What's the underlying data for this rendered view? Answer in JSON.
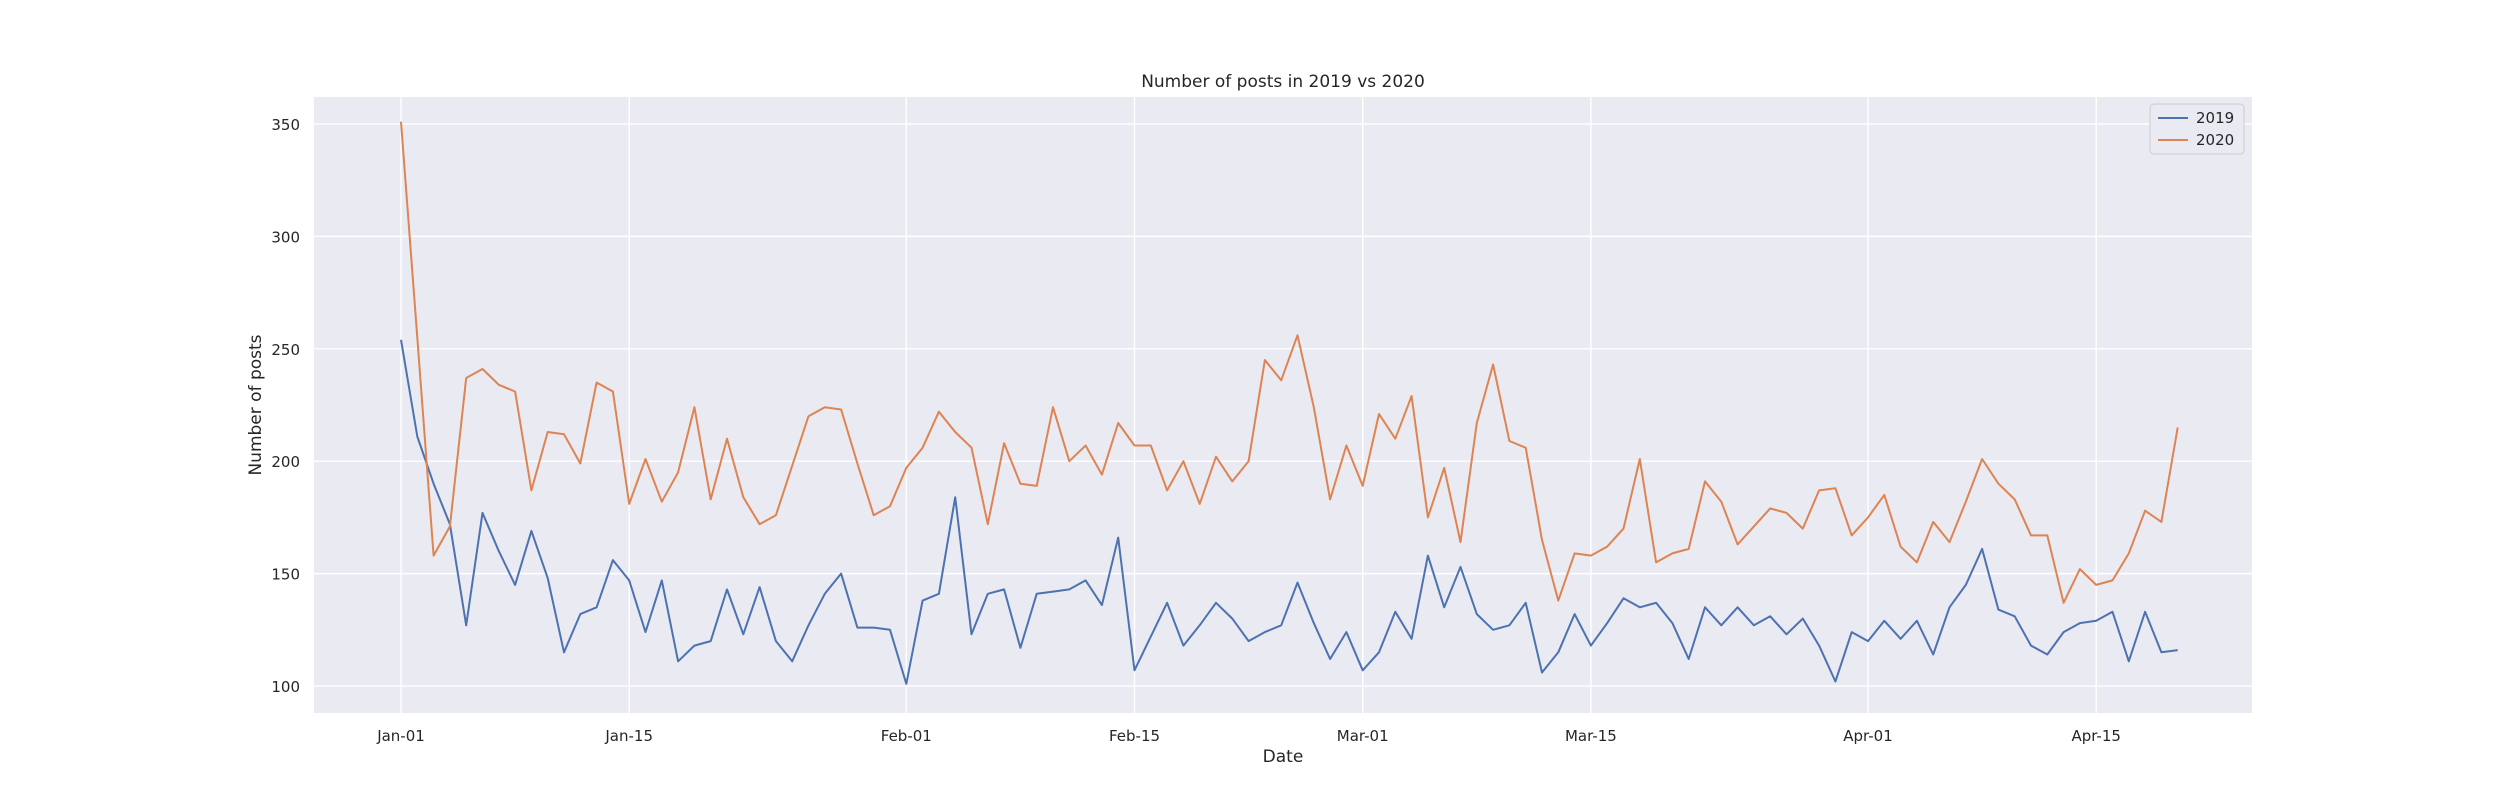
{
  "chart_data": {
    "type": "line",
    "title": "Number of posts in 2019 vs 2020",
    "xlabel": "Date",
    "ylabel": "Number of posts",
    "x_start": "Jan-01",
    "x_tick_labels": [
      "Jan-01",
      "Jan-15",
      "Feb-01",
      "Feb-15",
      "Mar-01",
      "Mar-15",
      "Apr-01",
      "Apr-15"
    ],
    "x_tick_days": [
      0,
      14,
      31,
      45,
      59,
      73,
      90,
      104
    ],
    "ylim": [
      88,
      362
    ],
    "y_ticks": [
      100,
      150,
      200,
      250,
      300,
      350
    ],
    "grid": true,
    "legend_position": "top-right",
    "background_color": "#eaeaf2",
    "series": [
      {
        "name": "2019",
        "color": "#4c72b0",
        "values": [
          254,
          211,
          190,
          172,
          127,
          177,
          160,
          145,
          169,
          148,
          115,
          132,
          135,
          156,
          147,
          124,
          147,
          111,
          118,
          120,
          143,
          123,
          144,
          120,
          111,
          127,
          141,
          150,
          126,
          126,
          125,
          101,
          138,
          141,
          184,
          123,
          141,
          143,
          117,
          141,
          142,
          143,
          147,
          136,
          166,
          107,
          122,
          137,
          118,
          127,
          137,
          130,
          120,
          124,
          127,
          146,
          128,
          112,
          124,
          107,
          115,
          133,
          121,
          158,
          135,
          153,
          132,
          125,
          127,
          137,
          106,
          115,
          132,
          118,
          128,
          139,
          135,
          137,
          128,
          112,
          135,
          127,
          135,
          127,
          131,
          123,
          130,
          118,
          102,
          124,
          120,
          129,
          121,
          129,
          114,
          135,
          145,
          161,
          134,
          131,
          118,
          114,
          124,
          128,
          129,
          133,
          111,
          133,
          115,
          116
        ],
        "x_days": [
          0,
          1,
          2,
          3,
          4,
          5,
          6,
          7,
          8,
          9,
          10,
          11,
          12,
          13,
          14,
          15,
          16,
          17,
          18,
          19,
          20,
          21,
          22,
          23,
          24,
          25,
          26,
          27,
          28,
          29,
          30,
          31,
          32,
          33,
          34,
          35,
          36,
          37,
          38,
          39,
          40,
          41,
          42,
          43,
          44,
          45,
          46,
          47,
          48,
          49,
          50,
          51,
          52,
          53,
          54,
          55,
          56,
          57,
          58,
          59,
          60,
          61,
          62,
          63,
          64,
          65,
          66,
          67,
          68,
          69,
          70,
          71,
          72,
          73,
          74,
          75,
          76,
          77,
          78,
          79,
          80,
          81,
          82,
          83,
          84,
          85,
          86,
          87,
          88,
          89,
          90,
          91,
          92,
          93,
          94,
          95,
          96,
          97,
          98,
          99,
          100,
          101,
          102,
          103,
          104,
          105,
          106,
          107,
          108,
          109
        ]
      },
      {
        "name": "2020",
        "color": "#dd8452",
        "values": [
          351,
          255,
          158,
          171,
          237,
          241,
          234,
          231,
          187,
          213,
          212,
          199,
          235,
          231,
          181,
          201,
          182,
          195,
          224,
          183,
          210,
          184,
          172,
          176,
          198,
          220,
          224,
          223,
          199,
          176,
          180,
          197,
          206,
          222,
          213,
          206,
          172,
          208,
          190,
          189,
          224,
          200,
          207,
          194,
          217,
          207,
          207,
          187,
          200,
          181,
          202,
          191,
          200,
          245,
          236,
          256,
          224,
          183,
          207,
          189,
          221,
          210,
          229,
          175,
          197,
          164,
          217,
          243,
          209,
          206,
          165,
          138,
          159,
          158,
          162,
          170,
          201,
          155,
          159,
          161,
          191,
          182,
          163,
          171,
          179,
          177,
          170,
          187,
          188,
          167,
          175,
          185,
          162,
          155,
          173,
          164,
          182,
          201,
          190,
          183,
          167,
          167,
          137,
          152,
          145,
          147,
          159,
          178,
          173,
          215
        ],
        "x_days": [
          0,
          1,
          2,
          3,
          4,
          5,
          6,
          7,
          8,
          9,
          10,
          11,
          12,
          13,
          14,
          15,
          16,
          17,
          18,
          19,
          20,
          21,
          22,
          23,
          24,
          25,
          26,
          27,
          28,
          29,
          30,
          31,
          32,
          33,
          34,
          35,
          36,
          37,
          38,
          39,
          40,
          41,
          42,
          43,
          44,
          45,
          46,
          47,
          48,
          49,
          50,
          51,
          52,
          53,
          54,
          55,
          56,
          57,
          58,
          59,
          60,
          61,
          62,
          63,
          64,
          65,
          66,
          67,
          68,
          69,
          70,
          71,
          72,
          73,
          74,
          75,
          76,
          77,
          78,
          79,
          80,
          81,
          82,
          83,
          84,
          85,
          86,
          87,
          88,
          89,
          90,
          91,
          92,
          93,
          94,
          95,
          96,
          97,
          98,
          99,
          100,
          101,
          102,
          103,
          104,
          105,
          106,
          107,
          108,
          109
        ]
      }
    ]
  }
}
